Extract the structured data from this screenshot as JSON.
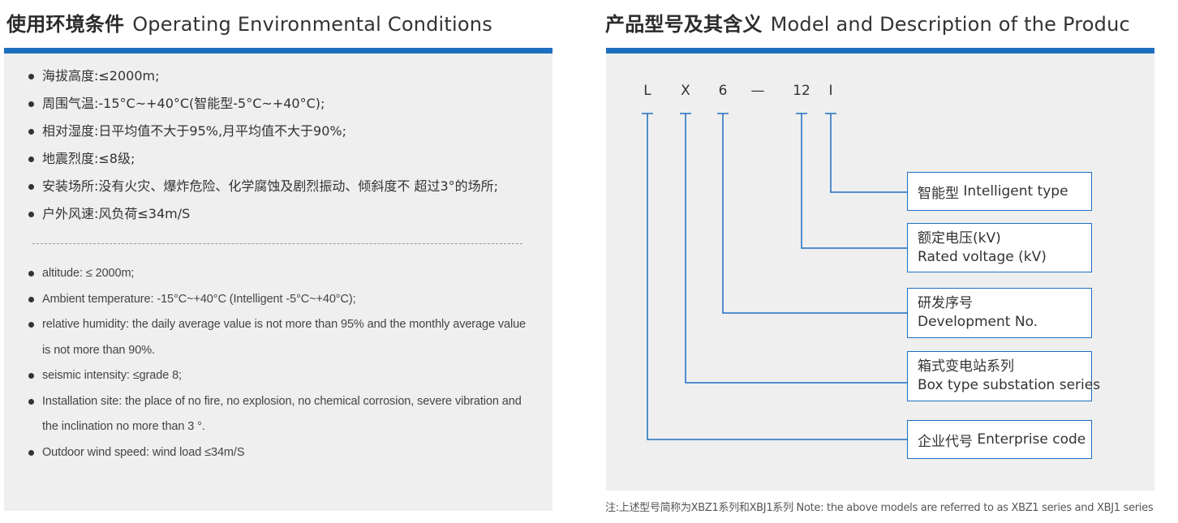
{
  "left": {
    "title_cn": "使用环境条件",
    "title_en": "Operating Environmental Conditions",
    "cn_items": [
      "海拔高度:≤2000m;",
      "周围气温:-15°C~+40°C(智能型-5°C~+40°C);",
      "相对湿度:日平均值不大于95%,月平均值不大于90%;",
      "地震烈度:≤8级;",
      "安装场所:没有火灾、爆炸危险、化学腐蚀及剧烈振动、倾斜度不 超过3°的场所;",
      "户外风速:风负荷≤34m/S"
    ],
    "en_items": [
      "altitude: ≤ 2000m;",
      "Ambient temperature: -15°C~+40°C (Intelligent -5°C~+40°C);",
      "relative humidity: the daily average value is not more than 95% and the monthly average value is not more than 90%.",
      "seismic intensity: ≤grade 8;",
      "Installation site: the place of no fire, no explosion, no chemical corrosion, severe vibration and the inclination no more than 3 °.",
      "Outdoor wind speed: wind load ≤34m/S"
    ]
  },
  "right": {
    "title_cn": "产品型号及其含义",
    "title_en": "Model and Description of the Produc",
    "code": [
      "L",
      "X",
      "6",
      "—",
      "12",
      "I"
    ],
    "boxes": [
      {
        "cn": "智能型",
        "en": "Intelligent type"
      },
      {
        "cn": "额定电压(kV)",
        "en": "Rated voltage (kV)"
      },
      {
        "cn": "研发序号",
        "en": "Development No."
      },
      {
        "cn": "箱式变电站系列",
        "en": "Box type substation series"
      },
      {
        "cn": "企业代号",
        "en": "Enterprise code"
      }
    ],
    "note": "注:上述型号简称为XBZ1系列和XBJ1系列  Note: the above models are referred to as XBZ1 series and XBJ1 series"
  },
  "colors": {
    "accent": "#1f6fc1",
    "panel_bg": "#efefef"
  }
}
